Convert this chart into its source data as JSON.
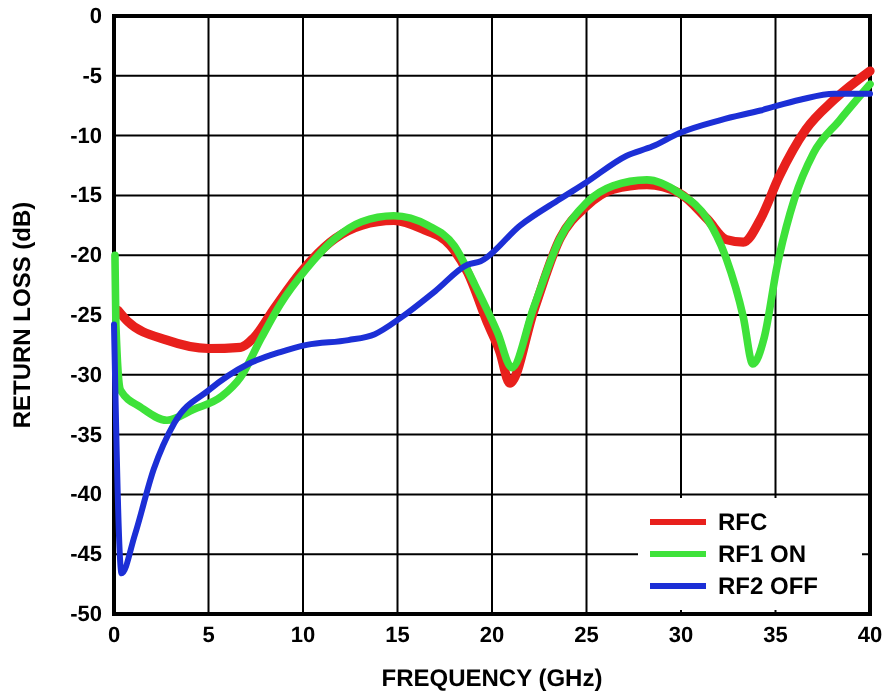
{
  "chart_data": {
    "type": "line",
    "xlabel": "FREQUENCY (GHz)",
    "ylabel": "RETURN LOSS (dB)",
    "xlim": [
      0,
      40
    ],
    "ylim": [
      -50,
      0
    ],
    "xticks": [
      0,
      5,
      10,
      15,
      20,
      25,
      30,
      35,
      40
    ],
    "yticks": [
      -50,
      -45,
      -40,
      -35,
      -30,
      -25,
      -20,
      -15,
      -10,
      -5,
      0
    ],
    "grid": true,
    "legend": "bottom right",
    "line_style": "solid",
    "marker": "none",
    "series": [
      {
        "name": "RFC",
        "color": "#e8201c",
        "x": [
          0.2,
          0.7,
          2.8,
          5,
          6.7,
          7.4,
          8.5,
          9.9,
          11.7,
          13.1,
          14.8,
          16.3,
          17.8,
          18.7,
          19.8,
          20.4,
          20.95,
          22.2,
          23.6,
          25,
          26.4,
          28.2,
          29.9,
          31.4,
          32.4,
          33.3,
          34.2,
          35.2,
          36.6,
          38.1,
          40
        ],
        "values": [
          -24.6,
          -25.5,
          -27.1,
          -27.8,
          -27.7,
          -26.9,
          -24.4,
          -21.4,
          -18.6,
          -17.5,
          -17.1,
          -17.8,
          -19.2,
          -21.4,
          -25.8,
          -28,
          -30.7,
          -24.7,
          -18.6,
          -15.9,
          -14.5,
          -14.1,
          -14.8,
          -17,
          -18.7,
          -18.9,
          -17,
          -13.4,
          -9.5,
          -7,
          -4.6
        ]
      },
      {
        "name": "RF1 ON",
        "color": "#3ee23a",
        "x": [
          0.05,
          0.1,
          0.35,
          1.4,
          2.8,
          4.2,
          5.7,
          6.7,
          7.8,
          8.8,
          10.2,
          11.7,
          13.1,
          14.8,
          16.6,
          18,
          19.1,
          20.3,
          21.05,
          22.2,
          23.6,
          25,
          26.4,
          28.2,
          29.9,
          31.4,
          32.4,
          33.3,
          33.8,
          34.4,
          35.1,
          36,
          37,
          38.4,
          40
        ],
        "values": [
          -20,
          -25.8,
          -31.3,
          -32.7,
          -33.8,
          -32.9,
          -31.8,
          -30.2,
          -26.9,
          -24.1,
          -21.1,
          -18.6,
          -17.2,
          -16.7,
          -17.5,
          -19.2,
          -22.5,
          -26.5,
          -29.4,
          -24.4,
          -18.6,
          -15.6,
          -14.2,
          -13.7,
          -14.8,
          -17,
          -20.3,
          -25.2,
          -29.1,
          -26.9,
          -20.8,
          -15.3,
          -11.5,
          -8.7,
          -5.7
        ]
      },
      {
        "name": "RF2 OFF",
        "color": "#1c2fd6",
        "x": [
          0,
          0.4,
          1.1,
          2.1,
          3.2,
          5,
          7.1,
          8.8,
          10.2,
          12.4,
          13.8,
          15.2,
          17,
          18.7,
          19.4,
          21.5,
          23.6,
          25,
          27.1,
          28.5,
          29.9,
          32.1,
          34.2,
          36.3,
          38.1,
          40
        ],
        "values": [
          -25.8,
          -46.6,
          -43.4,
          -37.9,
          -34,
          -31.3,
          -29.1,
          -28.1,
          -27.5,
          -27.1,
          -26.6,
          -25.2,
          -23,
          -20.8,
          -20.5,
          -17.5,
          -15.3,
          -13.9,
          -11.7,
          -10.9,
          -9.8,
          -8.7,
          -7.9,
          -7,
          -6.5,
          -6.5
        ]
      }
    ]
  }
}
